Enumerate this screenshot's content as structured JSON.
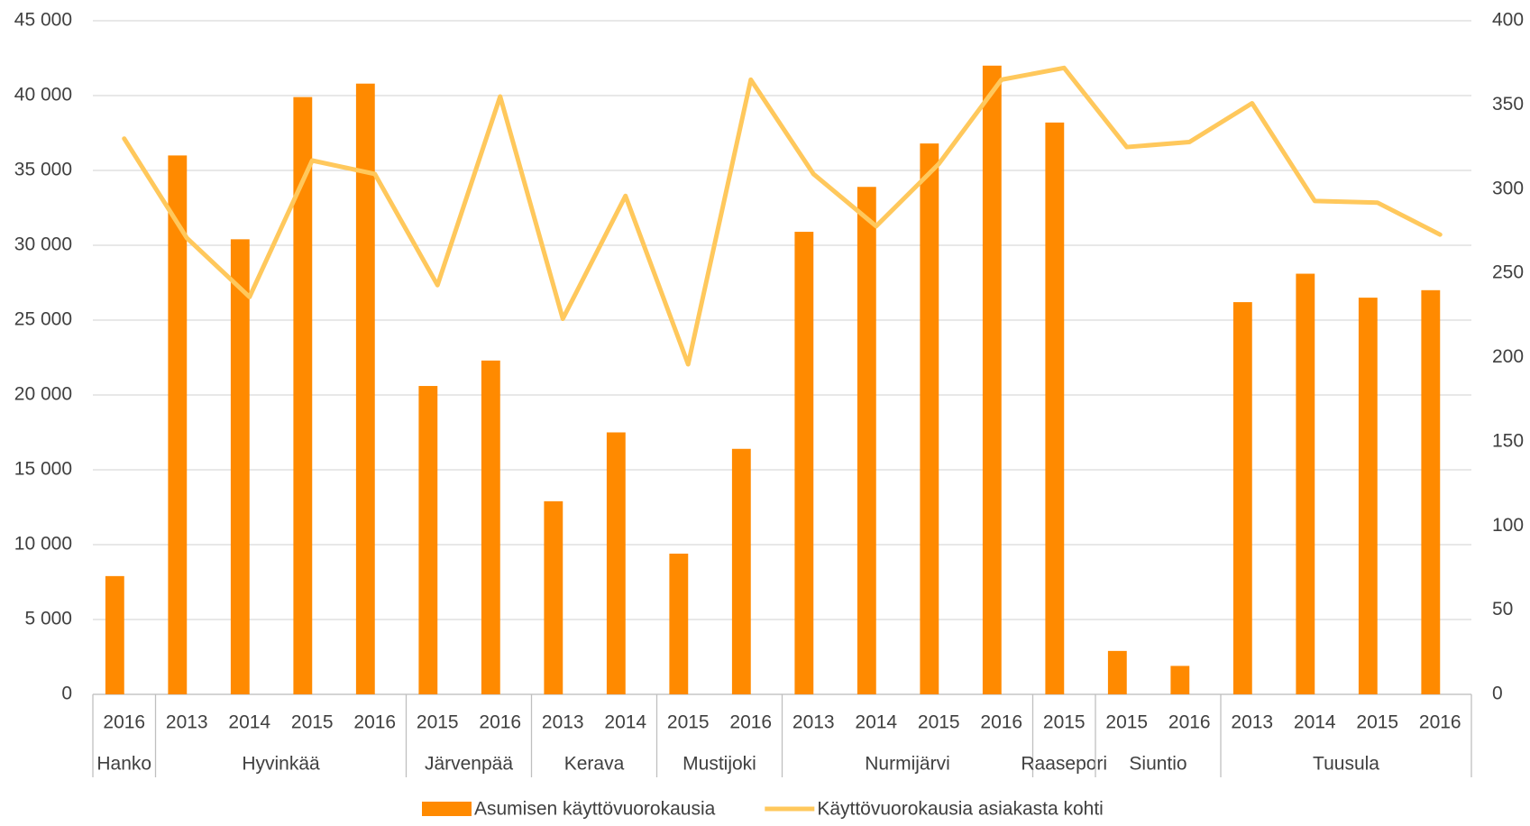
{
  "chart_data": {
    "type": "bar",
    "groups": [
      {
        "name": "Hanko",
        "categories": [
          "2016"
        ]
      },
      {
        "name": "Hyvinkää",
        "categories": [
          "2013",
          "2014",
          "2015",
          "2016"
        ]
      },
      {
        "name": "Järvenpää",
        "categories": [
          "2015",
          "2016"
        ]
      },
      {
        "name": "Kerava",
        "categories": [
          "2013",
          "2014"
        ]
      },
      {
        "name": "Mustijoki",
        "categories": [
          "2015",
          "2016"
        ]
      },
      {
        "name": "Nurmijärvi",
        "categories": [
          "2013",
          "2014",
          "2015",
          "2016"
        ]
      },
      {
        "name": "Raasepori",
        "categories": [
          "2015"
        ]
      },
      {
        "name": "Siuntio",
        "categories": [
          "2015",
          "2016"
        ]
      },
      {
        "name": "Tuusula",
        "categories": [
          "2013",
          "2014",
          "2015",
          "2016"
        ]
      }
    ],
    "series": [
      {
        "name": "Asumisen käyttövuorokausia",
        "type": "bar",
        "color": "#ff8a00",
        "values": [
          7900,
          36000,
          30400,
          39900,
          40800,
          20600,
          22300,
          12900,
          17500,
          9400,
          16400,
          30900,
          33900,
          36800,
          42000,
          38200,
          2900,
          1900,
          26200,
          28100,
          26500,
          27000
        ]
      },
      {
        "name": "Käyttövuorokausia asiakasta kohti",
        "type": "line",
        "axis": "y2",
        "color": "#ffc85c",
        "values": [
          330,
          271,
          236,
          317,
          309,
          243,
          355,
          223,
          296,
          196,
          365,
          309,
          278,
          315,
          365,
          372,
          325,
          328,
          351,
          293,
          292,
          273
        ]
      }
    ],
    "ylim": [
      0,
      45000
    ],
    "yticks": [
      0,
      {
        "value": 5000,
        "label": "5 000"
      },
      {
        "value": 10000,
        "label": "10 000"
      },
      {
        "value": 15000,
        "label": "15 000"
      },
      {
        "value": 20000,
        "label": "20 000"
      },
      {
        "value": 25000,
        "label": "25 000"
      },
      {
        "value": 30000,
        "label": "30 000"
      },
      {
        "value": 35000,
        "label": "35 000"
      },
      {
        "value": 40000,
        "label": "40 000"
      },
      {
        "value": 45000,
        "label": "45 000"
      }
    ],
    "y2lim": [
      0,
      400
    ],
    "y2ticks": [
      0,
      50,
      100,
      150,
      200,
      250,
      300,
      350,
      400
    ],
    "grid": true,
    "legend": "bottom"
  }
}
